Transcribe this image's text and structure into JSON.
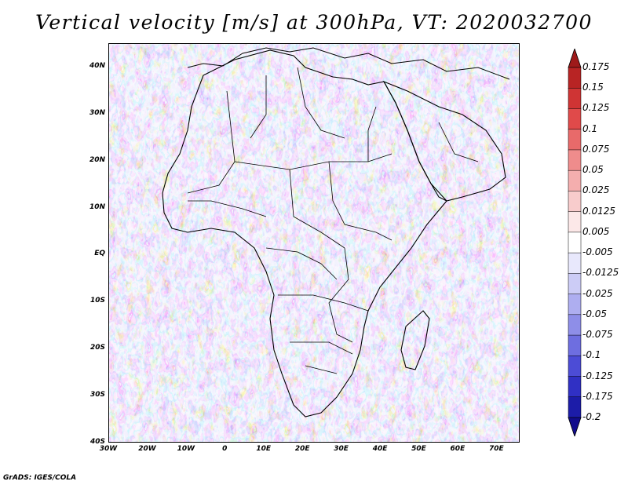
{
  "title": "Vertical velocity [m/s] at 300hPa, VT: 2020032700",
  "footer": "GrADS: IGES/COLA",
  "map": {
    "lon_range": [
      -30,
      76
    ],
    "lat_range": [
      -40,
      45
    ],
    "lat_ticks": [
      {
        "value": 40,
        "label": "40N"
      },
      {
        "value": 30,
        "label": "30N"
      },
      {
        "value": 20,
        "label": "20N"
      },
      {
        "value": 10,
        "label": "10N"
      },
      {
        "value": 0,
        "label": "EQ"
      },
      {
        "value": -10,
        "label": "10S"
      },
      {
        "value": -20,
        "label": "20S"
      },
      {
        "value": -30,
        "label": "30S"
      },
      {
        "value": -40,
        "label": "40S"
      }
    ],
    "lon_ticks": [
      {
        "value": -30,
        "label": "30W"
      },
      {
        "value": -20,
        "label": "20W"
      },
      {
        "value": -10,
        "label": "10W"
      },
      {
        "value": 0,
        "label": "0"
      },
      {
        "value": 10,
        "label": "10E"
      },
      {
        "value": 20,
        "label": "20E"
      },
      {
        "value": 30,
        "label": "30E"
      },
      {
        "value": 40,
        "label": "40E"
      },
      {
        "value": 50,
        "label": "50E"
      },
      {
        "value": 60,
        "label": "60E"
      },
      {
        "value": 70,
        "label": "70E"
      }
    ]
  },
  "colorbar": {
    "labels": [
      "0.175",
      "0.15",
      "0.125",
      "0.1",
      "0.075",
      "0.05",
      "0.025",
      "0.0125",
      "0.005",
      "-0.005",
      "-0.0125",
      "-0.025",
      "-0.05",
      "-0.075",
      "-0.1",
      "-0.125",
      "-0.175",
      "-0.2"
    ],
    "colors": [
      "#9e1a1a",
      "#b82424",
      "#cf3434",
      "#e04a4a",
      "#e86a6a",
      "#ef8c8c",
      "#f4aeae",
      "#f8cccc",
      "#fce8e8",
      "#ffffff",
      "#e8e8fc",
      "#ccccf6",
      "#aeaef0",
      "#8e8ee8",
      "#6e6ee0",
      "#4c4cd6",
      "#3030c4",
      "#1c1ca8",
      "#120c8c"
    ]
  },
  "legend_icons": {
    "upper_arrow": "triangle-up-icon",
    "lower_arrow": "triangle-down-icon"
  }
}
